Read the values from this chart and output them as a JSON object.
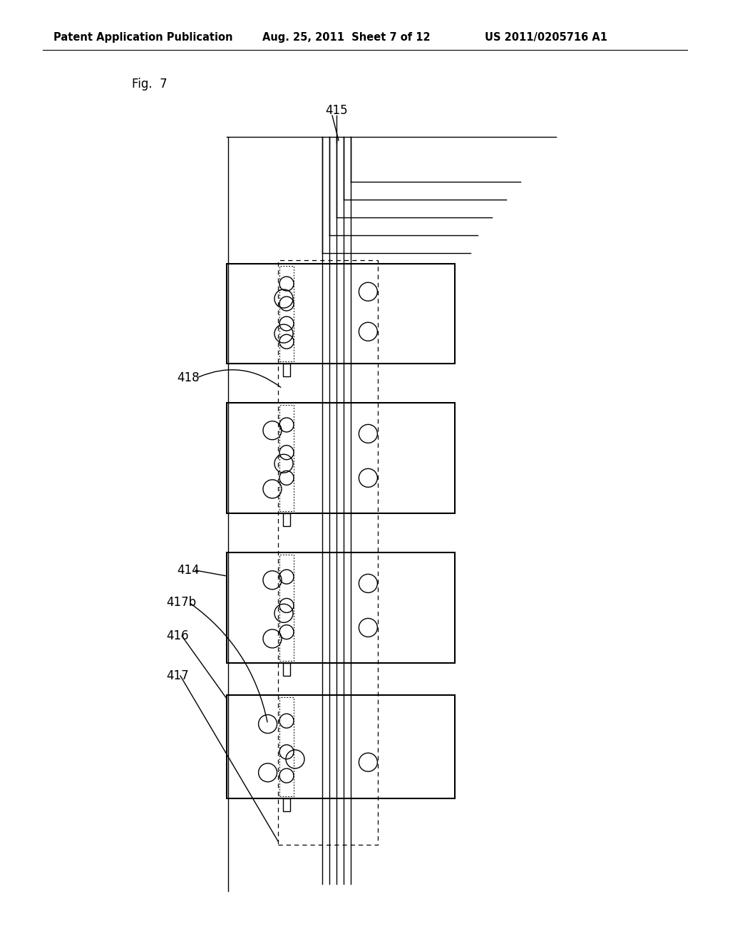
{
  "bg_color": "#ffffff",
  "line_color": "#000000",
  "header_left": "Patent Application Publication",
  "header_mid": "Aug. 25, 2011  Sheet 7 of 12",
  "header_right": "US 2011/0205716 A1",
  "fig_label": "Fig.  7",
  "note": "patent schematic diagram Fig 7"
}
